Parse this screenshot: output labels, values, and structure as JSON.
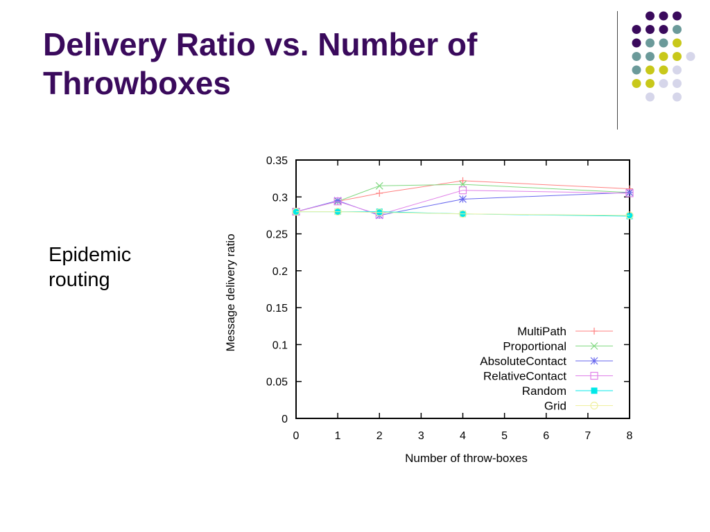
{
  "slide": {
    "title_line1": "Delivery Ratio vs. Number of",
    "title_line2": "Throwboxes",
    "body_line1": "Epidemic",
    "body_line2": "routing"
  },
  "decoration": {
    "colors": {
      "purple": "#3a0a5c",
      "teal": "#6b9a9a",
      "yellow": "#c8c81a",
      "lavender": "#d6d6ea"
    }
  },
  "chart_data": {
    "type": "line",
    "title": "",
    "xlabel": "Number of throw-boxes",
    "ylabel": "Message delivery ratio",
    "xlim": [
      0,
      8
    ],
    "ylim": [
      0,
      0.35
    ],
    "x_ticks": [
      "0",
      "1",
      "2",
      "3",
      "4",
      "5",
      "6",
      "7",
      "8"
    ],
    "y_ticks": [
      "0",
      "0.05",
      "0.1",
      "0.15",
      "0.2",
      "0.25",
      "0.3",
      "0.35"
    ],
    "grid": false,
    "legend_position": "bottom-right",
    "series": [
      {
        "name": "MultiPath",
        "marker": "plus",
        "color": "#ff8080",
        "x": [
          0,
          1,
          2,
          4,
          8
        ],
        "y": [
          0.28,
          0.294,
          0.305,
          0.322,
          0.311
        ]
      },
      {
        "name": "Proportional",
        "marker": "cross",
        "color": "#7fd87f",
        "x": [
          0,
          1,
          2,
          4,
          8
        ],
        "y": [
          0.28,
          0.294,
          0.315,
          0.317,
          0.306
        ]
      },
      {
        "name": "AbsoluteContact",
        "marker": "star",
        "color": "#6666ee",
        "x": [
          0,
          1,
          2,
          4,
          8
        ],
        "y": [
          0.28,
          0.295,
          0.275,
          0.297,
          0.306
        ]
      },
      {
        "name": "RelativeContact",
        "marker": "square-open",
        "color": "#e080e8",
        "x": [
          0,
          1,
          2,
          4,
          8
        ],
        "y": [
          0.28,
          0.294,
          0.276,
          0.309,
          0.305
        ]
      },
      {
        "name": "Random",
        "marker": "square-filled",
        "color": "#00e8e8",
        "x": [
          0,
          1,
          2,
          4,
          8
        ],
        "y": [
          0.28,
          0.28,
          0.28,
          0.277,
          0.274
        ]
      },
      {
        "name": "Grid",
        "marker": "circle",
        "color": "#f0f0a0",
        "x": [
          0,
          1,
          2,
          4,
          8
        ],
        "y": [
          0.28,
          0.28,
          0.279,
          0.277,
          0.275
        ]
      }
    ]
  }
}
